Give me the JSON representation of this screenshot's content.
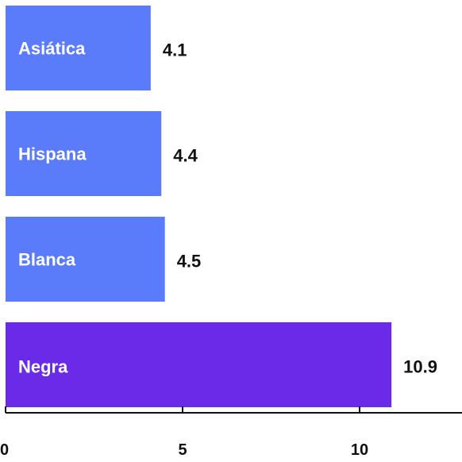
{
  "chart_data": {
    "type": "bar",
    "orientation": "horizontal",
    "categories": [
      "Asiática",
      "Hispana",
      "Blanca",
      "Negra"
    ],
    "values": [
      4.1,
      4.4,
      4.5,
      10.9
    ],
    "value_labels": [
      "4.1",
      "4.4",
      "4.5",
      "10.9"
    ],
    "xlim": [
      0,
      12.5
    ],
    "xticks": [
      0,
      5,
      10
    ],
    "xtick_labels": [
      "0",
      "5",
      "10"
    ],
    "grid": false,
    "colors": {
      "default_bar": "#5b7cfa",
      "highlight_bar": "#6a2ae8",
      "highlight_category": "Negra",
      "text_on_bar": "#ffffff",
      "value_text": "#111111",
      "axis": "#111111"
    }
  }
}
